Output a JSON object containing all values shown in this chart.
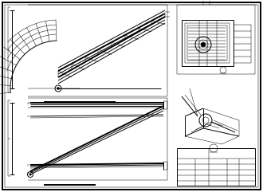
{
  "bg_color": "#ffffff",
  "line_color": "#000000",
  "dpi": 100,
  "figsize": [
    3.3,
    2.41
  ],
  "lw_thin": 0.35,
  "lw_med": 0.7,
  "lw_thick": 1.4
}
